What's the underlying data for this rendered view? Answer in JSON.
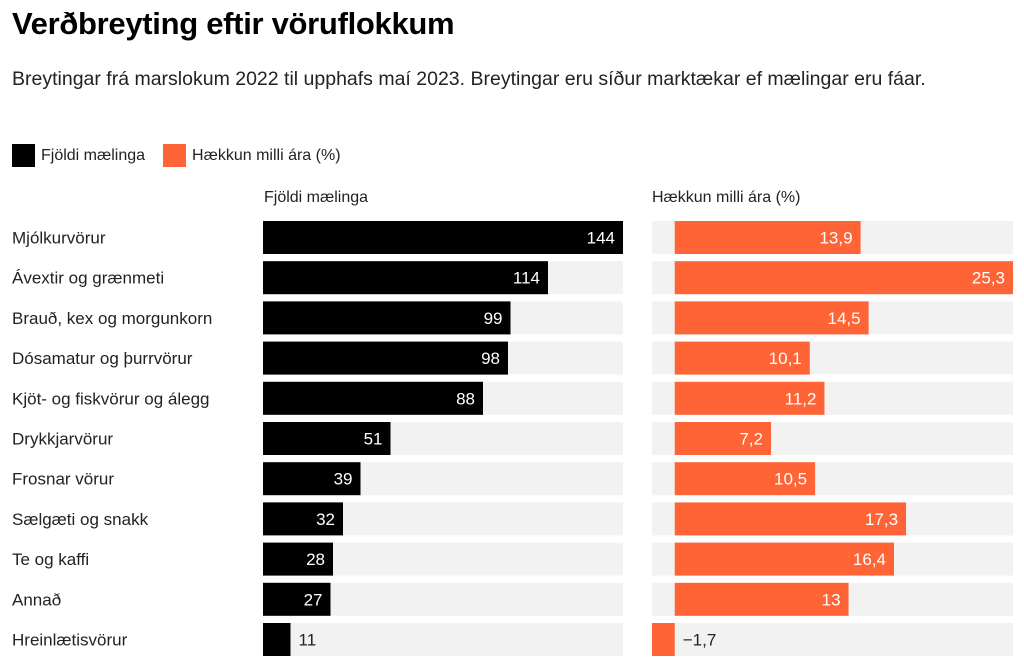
{
  "title": "Verðbreyting eftir vöruflokkum",
  "subtitle": "Breytingar frá marslokum 2022 til upphafs maí 2023. Breytingar eru síður marktækar ef mælingar eru fáar.",
  "colors": {
    "count": "#000000",
    "change": "#ff6437",
    "track": "#f2f2f2"
  },
  "chart_data": {
    "type": "bar",
    "orientation": "horizontal",
    "title": "Verðbreyting eftir vöruflokkum",
    "subtitle": "Breytingar frá marslokum 2022 til upphafs maí 2023. Breytingar eru síður marktækar ef mælingar eru fáar.",
    "legend": {
      "position": "top-left",
      "entries": [
        {
          "label": "Fjöldi mælinga",
          "color": "#000000"
        },
        {
          "label": "Hækkun milli ára (%)",
          "color": "#ff6437"
        }
      ]
    },
    "categories": [
      "Mjólkurvörur",
      "Ávextir og grænmeti",
      "Brauð, kex og morgunkorn",
      "Dósamatur og þurrvörur",
      "Kjöt- og fiskvörur og álegg",
      "Drykkjarvörur",
      "Frosnar vörur",
      "Sælgæti og snakk",
      "Te og kaffi",
      "Annað",
      "Hreinlætisvörur"
    ],
    "series": [
      {
        "name": "Fjöldi mælinga",
        "header": "Fjöldi mælinga",
        "values": [
          144,
          114,
          99,
          98,
          88,
          51,
          39,
          32,
          28,
          27,
          11
        ],
        "labels": [
          "144",
          "114",
          "99",
          "98",
          "88",
          "51",
          "39",
          "32",
          "28",
          "27",
          "11"
        ],
        "domain": [
          0,
          144
        ]
      },
      {
        "name": "Hækkun milli ára (%)",
        "header": "Hækkun milli ára (%)",
        "values": [
          13.9,
          25.3,
          14.5,
          10.1,
          11.2,
          7.2,
          10.5,
          17.3,
          16.4,
          13,
          -1.7
        ],
        "labels": [
          "13,9",
          "25,3",
          "14,5",
          "10,1",
          "11,2",
          "7,2",
          "10,5",
          "17,3",
          "16,4",
          "13",
          "−1,7"
        ],
        "domain": [
          -1.7,
          25.3
        ]
      }
    ],
    "grid": false
  }
}
